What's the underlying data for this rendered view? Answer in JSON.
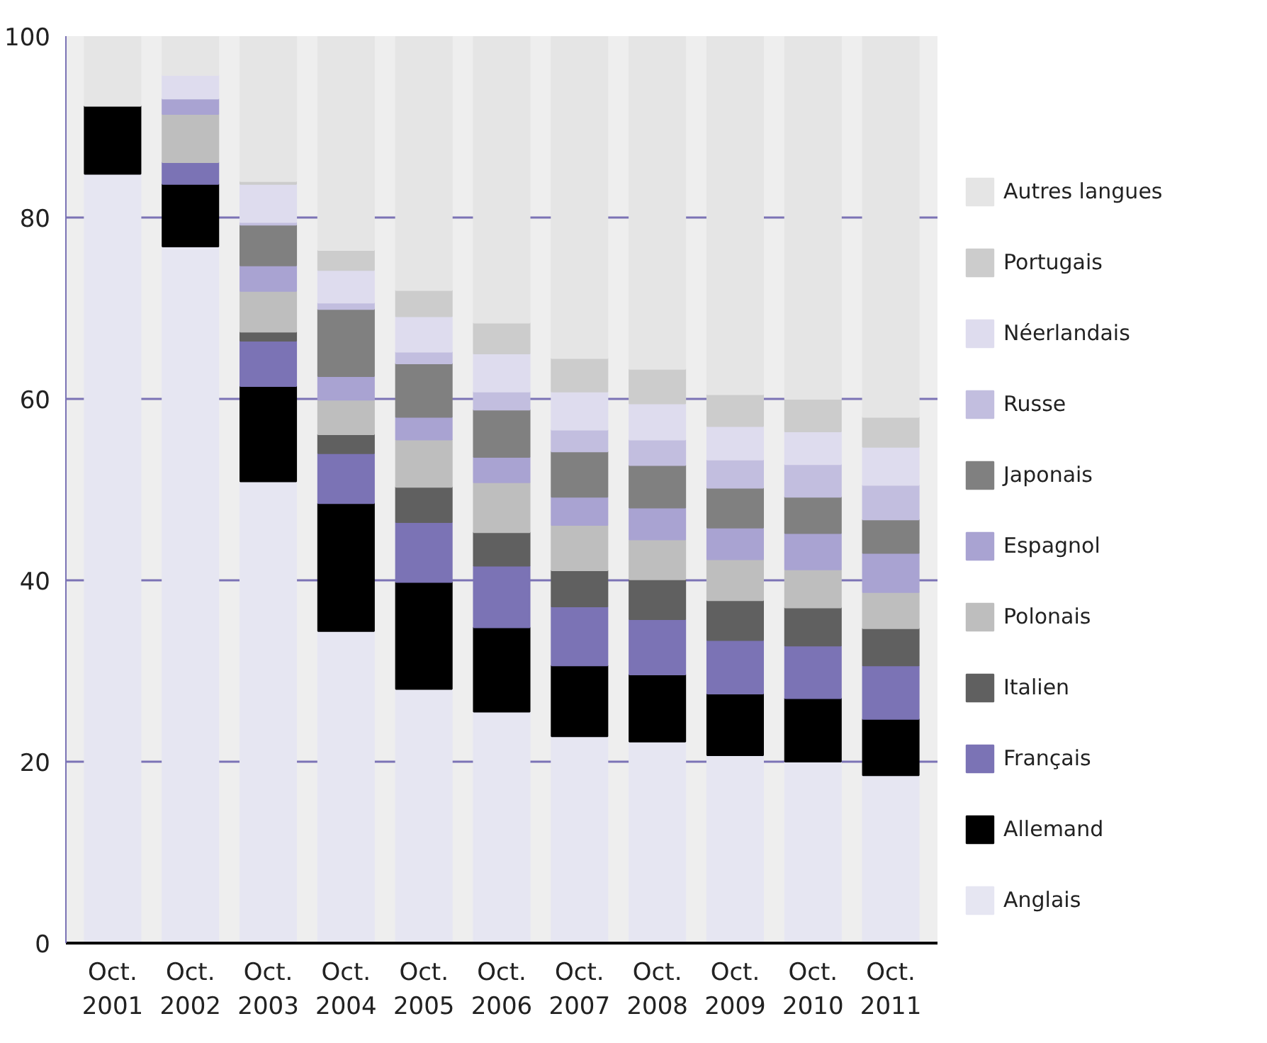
{
  "chart_data": {
    "type": "bar",
    "stacked": true,
    "categories": [
      "Oct.\n2001",
      "Oct.\n2002",
      "Oct.\n2003",
      "Oct.\n2004",
      "Oct.\n2005",
      "Oct.\n2006",
      "Oct.\n2007",
      "Oct.\n2008",
      "Oct.\n2009",
      "Oct.\n2010",
      "Oct.\n2011"
    ],
    "ylim": [
      0,
      100
    ],
    "yticks": [
      0,
      20,
      40,
      60,
      80,
      100
    ],
    "grid": "y",
    "legend": "right",
    "series": [
      {
        "name": "Anglais",
        "color": "#e6e6f2",
        "values": [
          84.8,
          76.8,
          50.9,
          34.4,
          28.0,
          25.5,
          22.8,
          22.2,
          20.7,
          20.0,
          18.5
        ]
      },
      {
        "name": "Allemand",
        "color": "#000000",
        "values": [
          7.5,
          6.9,
          10.5,
          14.1,
          11.8,
          9.3,
          7.8,
          7.4,
          6.8,
          7.0,
          6.2
        ]
      },
      {
        "name": "Français",
        "color": "#7b73b5",
        "values": [
          null,
          2.4,
          5.0,
          5.5,
          6.6,
          6.8,
          6.5,
          6.1,
          5.9,
          5.8,
          5.9
        ]
      },
      {
        "name": "Italien",
        "color": "#606060",
        "values": [
          null,
          null,
          1.0,
          2.1,
          3.9,
          3.7,
          4.0,
          4.4,
          4.4,
          4.2,
          4.1
        ]
      },
      {
        "name": "Polonais",
        "color": "#bebebe",
        "values": [
          null,
          5.3,
          4.5,
          3.8,
          5.2,
          5.5,
          5.0,
          4.4,
          4.5,
          4.2,
          4.0
        ]
      },
      {
        "name": "Espagnol",
        "color": "#a9a3d2",
        "values": [
          null,
          1.7,
          2.8,
          2.6,
          2.5,
          2.8,
          3.1,
          3.5,
          3.5,
          4.0,
          4.3
        ]
      },
      {
        "name": "Japonais",
        "color": "#808080",
        "values": [
          null,
          null,
          4.5,
          7.4,
          5.9,
          5.2,
          5.0,
          4.7,
          4.4,
          4.0,
          3.7
        ]
      },
      {
        "name": "Russe",
        "color": "#c2bedf",
        "values": [
          null,
          null,
          0.3,
          0.7,
          1.3,
          2.0,
          2.4,
          2.8,
          3.1,
          3.6,
          3.8
        ]
      },
      {
        "name": "Néerlandais",
        "color": "#dedcee",
        "values": [
          null,
          2.6,
          4.2,
          3.6,
          3.9,
          4.2,
          4.2,
          4.0,
          3.7,
          3.6,
          4.2
        ]
      },
      {
        "name": "Portugais",
        "color": "#cccccc",
        "values": [
          null,
          null,
          0.3,
          2.2,
          2.9,
          3.4,
          3.7,
          3.8,
          3.5,
          3.6,
          3.3
        ]
      },
      {
        "name": "Autres langues",
        "color": "#e5e5e5",
        "values": [
          7.7,
          4.3,
          16.0,
          23.6,
          28.0,
          31.6,
          35.5,
          36.7,
          39.5,
          40.0,
          42.0
        ]
      }
    ]
  }
}
